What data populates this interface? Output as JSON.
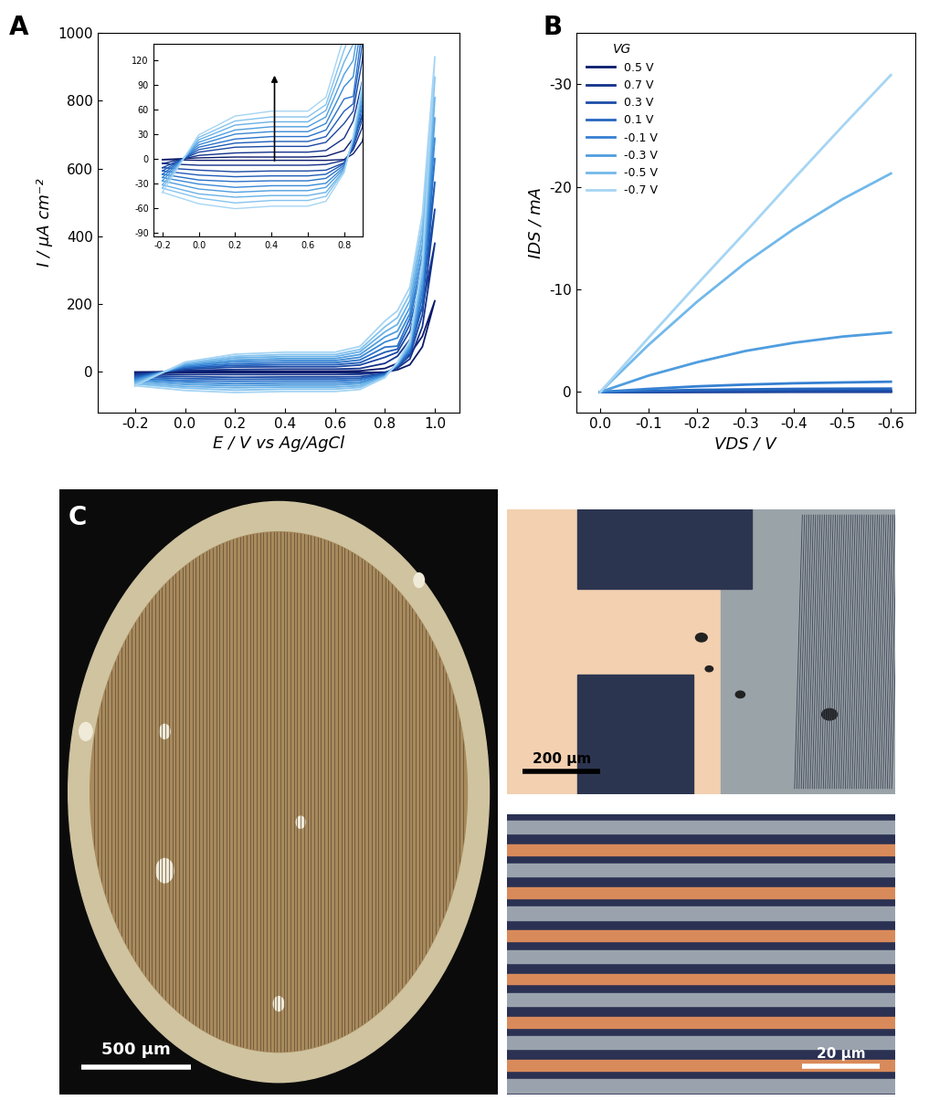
{
  "chart_data": [
    {
      "type": "line",
      "title": "A",
      "xlabel": "E / V vs Ag/AgCl",
      "ylabel": "I / µA cm⁻²",
      "x": [
        -0.2,
        0.0,
        0.2,
        0.4,
        0.6,
        0.7,
        0.8,
        0.85,
        0.9,
        0.95,
        1.0,
        1.0,
        0.95,
        0.9,
        0.85,
        0.8,
        0.7,
        0.6,
        0.4,
        0.2,
        0.0,
        -0.2
      ],
      "xlim": [
        -0.35,
        1.1
      ],
      "xticks": [
        -0.2,
        0.0,
        0.2,
        0.4,
        0.6,
        0.8,
        1.0
      ],
      "ylim": [
        -120,
        1000
      ],
      "yticks": [
        0,
        200,
        400,
        600,
        800,
        1000
      ],
      "series": [
        {
          "color": "#0a1a6b",
          "values": [
            -1,
            1,
            2,
            2,
            2,
            3,
            10,
            25,
            52,
            105,
            210,
            210,
            74,
            21,
            6,
            -1,
            -2,
            -2,
            -2,
            -2,
            -2,
            -1
          ]
        },
        {
          "color": "#13318a",
          "values": [
            -6,
            4,
            7,
            8,
            8,
            10,
            25,
            46,
            95,
            190,
            380,
            380,
            133,
            38,
            11,
            -2,
            -7,
            -8,
            -8,
            -8,
            -8,
            -6
          ]
        },
        {
          "color": "#1a47a3",
          "values": [
            -11,
            8,
            14,
            15,
            15,
            20,
            43,
            58,
            120,
            240,
            480,
            480,
            168,
            48,
            14,
            -5,
            -14,
            -15,
            -15,
            -16,
            -14,
            -11
          ]
        },
        {
          "color": "#1f5cb8",
          "values": [
            -15,
            11,
            19,
            21,
            21,
            27,
            58,
            67,
            140,
            280,
            560,
            560,
            196,
            56,
            17,
            -6,
            -19,
            -21,
            -21,
            -22,
            -20,
            -15
          ]
        },
        {
          "color": "#2a72c9",
          "values": [
            -19,
            14,
            24,
            27,
            27,
            35,
            73,
            76,
            158,
            315,
            630,
            630,
            220,
            63,
            19,
            -8,
            -24,
            -27,
            -27,
            -28,
            -26,
            -19
          ]
        },
        {
          "color": "#3a88d6",
          "values": [
            -23,
            17,
            30,
            33,
            33,
            43,
            88,
            100,
            172,
            345,
            690,
            690,
            242,
            69,
            21,
            -10,
            -30,
            -33,
            -33,
            -35,
            -31,
            -23
          ]
        },
        {
          "color": "#4f9ddf",
          "values": [
            -27,
            20,
            35,
            39,
            39,
            51,
            103,
            120,
            190,
            375,
            750,
            750,
            262,
            75,
            22,
            -12,
            -35,
            -39,
            -39,
            -41,
            -37,
            -27
          ]
        },
        {
          "color": "#68b1e7",
          "values": [
            -32,
            23,
            41,
            45,
            45,
            59,
            118,
            140,
            210,
            405,
            810,
            810,
            284,
            81,
            24,
            -14,
            -41,
            -45,
            -45,
            -47,
            -43,
            -32
          ]
        },
        {
          "color": "#85c3ee",
          "values": [
            -36,
            26,
            46,
            51,
            51,
            66,
            133,
            160,
            230,
            435,
            870,
            870,
            305,
            87,
            26,
            -15,
            -46,
            -51,
            -51,
            -54,
            -48,
            -36
          ]
        },
        {
          "color": "#a6d5f4",
          "values": [
            -41,
            29,
            52,
            58,
            58,
            75,
            150,
            180,
            250,
            465,
            930,
            930,
            326,
            93,
            28,
            -17,
            -52,
            -58,
            -58,
            -61,
            -55,
            -41
          ]
        }
      ],
      "inset": {
        "xlim": [
          -0.25,
          0.9
        ],
        "xticks": [
          -0.2,
          0.0,
          0.2,
          0.4,
          0.6,
          0.8
        ],
        "ylim": [
          -95,
          140
        ],
        "yticks": [
          -90,
          -60,
          -30,
          0,
          30,
          60,
          90,
          120
        ]
      }
    },
    {
      "type": "line",
      "title": "B",
      "xlabel": "VDS / V",
      "ylabel": "IDS / mA",
      "legend": "upper left",
      "legend_title": "VG",
      "x": [
        0.0,
        -0.1,
        -0.2,
        -0.3,
        -0.4,
        -0.5,
        -0.6
      ],
      "xlim": [
        0.05,
        -0.65
      ],
      "xticks": [
        0.0,
        -0.1,
        -0.2,
        -0.3,
        -0.4,
        -0.5,
        -0.6
      ],
      "ylim": [
        2,
        -35
      ],
      "yticks": [
        0,
        -10,
        -20,
        -30
      ],
      "series": [
        {
          "name": "0.5 V",
          "color": "#0a1a6b",
          "values": [
            0,
            -0.02,
            -0.03,
            -0.04,
            -0.05,
            -0.05,
            -0.05
          ]
        },
        {
          "name": "0.7 V",
          "color": "#13318a",
          "values": [
            0,
            -0.01,
            -0.02,
            -0.02,
            -0.03,
            -0.03,
            -0.03
          ]
        },
        {
          "name": "0.3 V",
          "color": "#1c4ca8",
          "values": [
            0,
            -0.02,
            -0.05,
            -0.07,
            -0.08,
            -0.09,
            -0.1
          ]
        },
        {
          "name": "0.1 V",
          "color": "#2566c0",
          "values": [
            0,
            -0.1,
            -0.2,
            -0.25,
            -0.3,
            -0.32,
            -0.33
          ]
        },
        {
          "name": "-0.1 V",
          "color": "#3580d2",
          "values": [
            0,
            -0.3,
            -0.55,
            -0.72,
            -0.85,
            -0.93,
            -1.0
          ]
        },
        {
          "name": "-0.3 V",
          "color": "#4f9ddf",
          "values": [
            0,
            -1.6,
            -2.9,
            -4.0,
            -4.8,
            -5.4,
            -5.8
          ]
        },
        {
          "name": "-0.5 V",
          "color": "#72b8ea",
          "values": [
            0,
            -4.6,
            -8.8,
            -12.6,
            -15.9,
            -18.8,
            -21.3
          ]
        },
        {
          "name": "-0.7 V",
          "color": "#a6d5f4",
          "values": [
            0,
            -5.3,
            -10.5,
            -15.6,
            -20.8,
            -25.9,
            -30.9
          ]
        }
      ]
    }
  ],
  "images": [
    {
      "title": "C",
      "scale_bar": "500 µm"
    },
    {
      "scale_bar": "200 µm"
    },
    {
      "scale_bar": "20 µm"
    }
  ]
}
